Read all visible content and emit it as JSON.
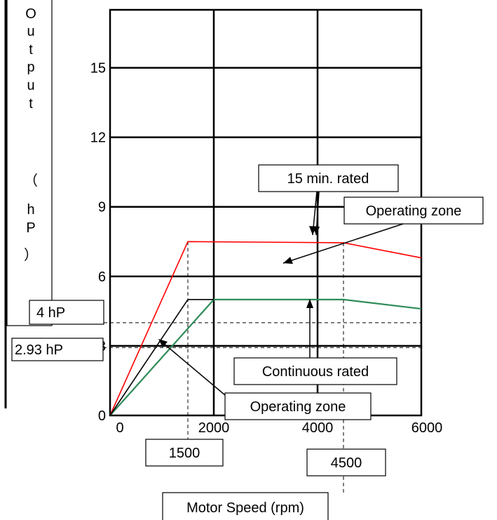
{
  "chart_data": {
    "type": "line",
    "xlabel": "Motor Speed (rpm)",
    "ylabel_chars": [
      "O",
      "u",
      "t",
      "p",
      "u",
      "t",
      "（",
      "h",
      "P",
      "）"
    ],
    "xlim": [
      0,
      6000
    ],
    "ylim": [
      0,
      17.5
    ],
    "x_ticks": [
      0,
      2000,
      4000,
      6000
    ],
    "y_ticks": [
      0,
      3,
      6,
      9,
      12,
      15
    ],
    "x_tick_labels": [
      "0",
      "2000",
      "4000",
      "6000"
    ],
    "y_tick_labels": [
      "0",
      "3",
      "6",
      "9",
      "12",
      "15"
    ],
    "grid": true,
    "series": [
      {
        "key": "rated15",
        "color": "#ff0000",
        "x": [
          0,
          1500,
          4500,
          6000
        ],
        "y": [
          0,
          7.5,
          7.45,
          6.8
        ]
      },
      {
        "key": "continuous",
        "color": "#2e8b57",
        "x": [
          0,
          2000,
          4500,
          6000
        ],
        "y": [
          0,
          5.0,
          5.0,
          4.6
        ]
      },
      {
        "key": "black",
        "color": "#000000",
        "x": [
          0,
          1500,
          2000
        ],
        "y": [
          0,
          5.0,
          5.0
        ]
      }
    ],
    "reference_lines": {
      "vertical": [
        1500,
        4500
      ],
      "horizontal": [
        4.0,
        2.93
      ],
      "v_labels": [
        "1500",
        "4500"
      ],
      "h_labels": [
        "4 hP",
        "2.93 hP"
      ]
    },
    "annotations": [
      {
        "text": "15 min. rated"
      },
      {
        "text": "Operating zone"
      },
      {
        "text": "Continuous rated"
      },
      {
        "text": "Operating zone"
      }
    ]
  }
}
